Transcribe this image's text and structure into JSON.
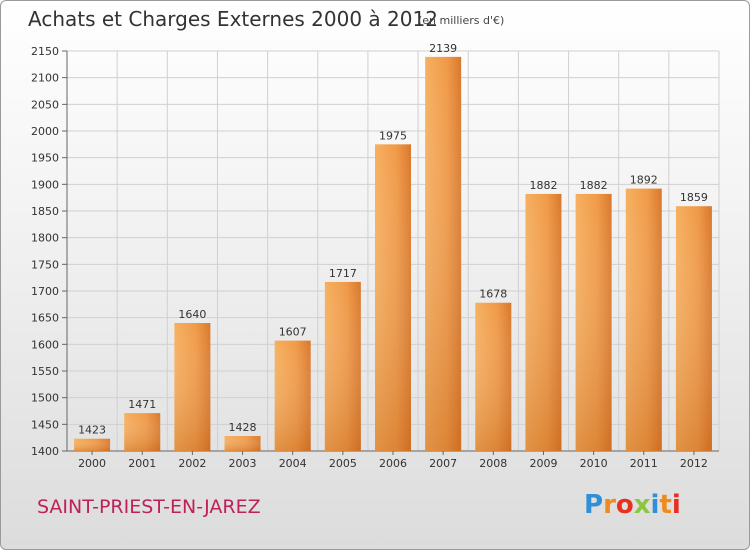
{
  "header": {
    "title": "Achats et Charges Externes 2000 à 2012",
    "unit": "(en milliers d'€)"
  },
  "footer": {
    "commune": "SAINT-PRIEST-EN-JAREZ",
    "logo": [
      "P",
      "r",
      "o",
      "x",
      "i",
      "t",
      "i"
    ],
    "logo_colors": [
      "#2f8fd8",
      "#f08a1c",
      "#e8301c",
      "#8cc63f",
      "#2f8fd8",
      "#f08a1c",
      "#e8301c"
    ]
  },
  "chart_data": {
    "type": "bar",
    "title": "Achats et Charges Externes 2000 à 2012",
    "subtitle": "(en milliers d'€)",
    "categories": [
      "2000",
      "2001",
      "2002",
      "2003",
      "2004",
      "2005",
      "2006",
      "2007",
      "2008",
      "2009",
      "2010",
      "2011",
      "2012"
    ],
    "values": [
      1423,
      1471,
      1640,
      1428,
      1607,
      1717,
      1975,
      2139,
      1678,
      1882,
      1882,
      1892,
      1859
    ],
    "ylim": [
      1400,
      2150
    ],
    "yticks": [
      1400,
      1450,
      1500,
      1550,
      1600,
      1650,
      1700,
      1750,
      1800,
      1850,
      1900,
      1950,
      2000,
      2050,
      2100,
      2150
    ],
    "grid": true,
    "bar_color": "#f0a050",
    "bar_color_dark": "#d8782a"
  }
}
